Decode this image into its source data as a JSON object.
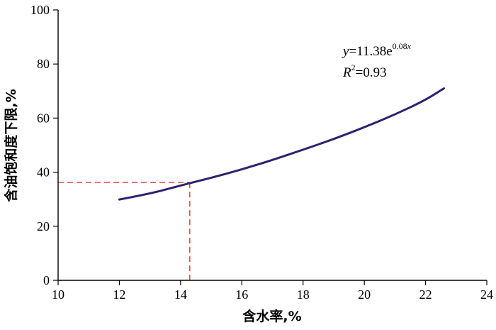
{
  "chart_data": {
    "type": "line",
    "title": "",
    "xlabel": "含水率,%",
    "ylabel": "含油饱和度下限,%",
    "xlim": [
      10,
      24
    ],
    "ylim": [
      0,
      100
    ],
    "xticks": [
      "10",
      "12",
      "14",
      "16",
      "18",
      "20",
      "22",
      "24"
    ],
    "yticks": [
      "0",
      "20",
      "40",
      "60",
      "80",
      "100"
    ],
    "grid": false,
    "series": [
      {
        "color": "#2e2270",
        "x": [
          12.0,
          13.0,
          14.0,
          15.0,
          16.0,
          17.0,
          18.0,
          19.0,
          20.0,
          21.0,
          22.0,
          22.6
        ],
        "y": [
          29.9,
          32.0,
          35.1,
          37.9,
          41.0,
          44.5,
          48.3,
          52.2,
          56.6,
          61.3,
          66.7,
          71.0
        ]
      }
    ],
    "fit_equation": {
      "y_var": "y",
      "prefix": "=11.38e",
      "exponent": "0.08",
      "exponent_var": "x",
      "r_var": "R",
      "r_sup": "2",
      "r_value": "=0.93"
    },
    "reference": {
      "x": 14.3,
      "y": 36.2,
      "color": "#e8333a"
    }
  }
}
